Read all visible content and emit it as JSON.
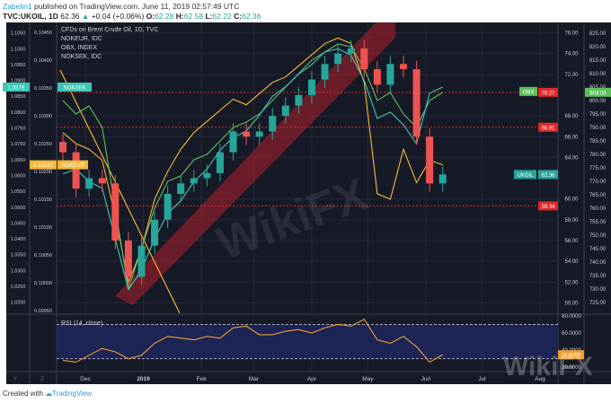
{
  "header": {
    "author": "Zabelin1",
    "published": "published on TradingView.com, June 11, 2019 02:57:49 UTC",
    "symbol": "TVC:UKOIL, 1D",
    "last": "62.36",
    "change": "+0.04 (+0.06%)",
    "o_label": "O:",
    "o": "62.28",
    "h_label": "H:",
    "h": "62.58",
    "l_label": "L:",
    "l": "62.22",
    "c_label": "C:",
    "c": "62.36"
  },
  "legend": [
    "CFDs on Brent Crude Oil, 1D, TVC",
    "NOKEUR, IDC",
    "OBX, INDEX",
    "NOKSEK, IDC"
  ],
  "footer": {
    "created_with": "Created with",
    "brand": "TradingView"
  },
  "watermark": "WikiFX",
  "colors": {
    "background": "#161a27",
    "grid": "#262b3a",
    "up": "#26a69a",
    "down": "#ef5350",
    "nokeur": "#f6b83a",
    "obx": "#5fbf5a",
    "noksek": "#3fc7b4",
    "rsi": "#f0a030",
    "rsi_band": "#1d2456",
    "level": "#e02828",
    "channel": "#b0202a",
    "trendline": "#f0b030"
  },
  "chart_data": [
    {
      "type": "candlestick",
      "title": "CFDs on Brent Crude Oil, 1D, TVC",
      "x": [
        "2018-11-19",
        "2018-11-26",
        "2018-12-03",
        "2018-12-10",
        "2018-12-17",
        "2018-12-24",
        "2018-12-31",
        "2019-01-07",
        "2019-01-14",
        "2019-01-21",
        "2019-01-28",
        "2019-02-04",
        "2019-02-11",
        "2019-02-18",
        "2019-02-25",
        "2019-03-04",
        "2019-03-11",
        "2019-03-18",
        "2019-03-25",
        "2019-04-01",
        "2019-04-08",
        "2019-04-15",
        "2019-04-22",
        "2019-04-29",
        "2019-05-06",
        "2019-05-13",
        "2019-05-20",
        "2019-05-27",
        "2019-06-03",
        "2019-06-10"
      ],
      "close": [
        64.5,
        61.0,
        62.0,
        61.5,
        56.0,
        52.5,
        55.5,
        58.0,
        60.5,
        61.5,
        62.0,
        62.5,
        64.5,
        66.5,
        66.0,
        66.5,
        68.0,
        69.0,
        70.0,
        71.5,
        73.0,
        74.0,
        74.5,
        72.5,
        71.0,
        73.0,
        72.5,
        66.0,
        61.5,
        62.36
      ],
      "ylim": [
        49,
        77
      ],
      "yticks": [
        "76.00",
        "74.00",
        "72.00",
        "68.00",
        "66.00",
        "64.00",
        "60.00",
        "58.00",
        "56.00",
        "54.00",
        "52.00",
        "50.00"
      ],
      "levels": [
        {
          "value": "70.27"
        },
        {
          "value": "66.91"
        },
        {
          "value": "59.34"
        }
      ],
      "last_label": "UKOIL",
      "last_value": "62.36"
    },
    {
      "type": "line",
      "name": "NOKEUR, IDC",
      "close": [
        0.1027,
        0.1025,
        0.1024,
        0.1022,
        0.1012,
        0.1,
        0.1006,
        0.1015,
        0.102,
        0.1024,
        0.1027,
        0.1029,
        0.1031,
        0.1033,
        0.1032,
        0.1034,
        0.1036,
        0.1037,
        0.1039,
        0.1041,
        0.1043,
        0.1044,
        0.1043,
        0.1036,
        0.1016,
        0.1015,
        0.1024,
        0.1018,
        0.1022,
        0.10212
      ],
      "ylim": [
        0.09945,
        0.10468
      ],
      "yticks": [
        "0.10450",
        "0.10400",
        "0.10350",
        "0.10300",
        "0.10250",
        "0.10200",
        "0.10150",
        "0.10100",
        "0.10050",
        "0.10000",
        "0.09950"
      ],
      "last_label": "NOKEUR",
      "last_value": "0.10212"
    },
    {
      "type": "line",
      "name": "OBX, INDEX",
      "close": [
        800,
        795,
        798,
        790,
        760,
        730,
        745,
        760,
        770,
        772,
        778,
        780,
        785,
        790,
        792,
        795,
        800,
        805,
        810,
        815,
        818,
        821,
        820,
        812,
        800,
        803,
        795,
        790,
        800,
        803.05
      ],
      "ylim": [
        721,
        829
      ],
      "yticks": [
        "825.00",
        "820.00",
        "815.00",
        "810.00",
        "805.00",
        "800.00",
        "795.00",
        "790.00",
        "785.00",
        "780.00",
        "775.00",
        "770.00",
        "765.00",
        "760.00",
        "755.00",
        "750.00",
        "745.00",
        "740.00",
        "735.00",
        "730.00",
        "725.00"
      ],
      "last_label": "OBX",
      "last_value": "803.05"
    },
    {
      "type": "line",
      "name": "NOKSEK, IDC",
      "close": [
        1.0605,
        1.062,
        1.058,
        1.056,
        1.04,
        1.024,
        1.03,
        1.04,
        1.048,
        1.052,
        1.058,
        1.062,
        1.068,
        1.072,
        1.074,
        1.079,
        1.085,
        1.088,
        1.092,
        1.095,
        1.099,
        1.1,
        1.098,
        1.09,
        1.078,
        1.08,
        1.076,
        1.07,
        1.086,
        1.0879
      ],
      "ylim": [
        1.0165,
        1.1083
      ],
      "yticks": [
        "1.1050",
        "1.1000",
        "1.0950",
        "1.0900",
        "1.0850",
        "1.0800",
        "1.0750",
        "1.0700",
        "1.0650",
        "1.0600",
        "1.0550",
        "1.0500",
        "1.0450",
        "1.0400",
        "1.0350",
        "1.0300",
        "1.0250",
        "1.0200"
      ],
      "last_label": "NOKSEK",
      "last_value": "1.0879"
    },
    {
      "type": "line",
      "name": "RSI (14, close)",
      "values": [
        28,
        26,
        34,
        42,
        38,
        30,
        34,
        48,
        56,
        54,
        52,
        56,
        54,
        66,
        68,
        58,
        58,
        62,
        64,
        60,
        66,
        70,
        68,
        76,
        52,
        48,
        56,
        44,
        26,
        34.6096
      ],
      "ylim": [
        16,
        82
      ],
      "yticks": [
        "80.0000",
        "60.0000",
        "40.0000",
        "20.0000"
      ],
      "bands": [
        70,
        30
      ],
      "last_value": "34.6096"
    }
  ],
  "time_axis": [
    {
      "label": "Dec",
      "date": "2018-12-01"
    },
    {
      "label": "2019",
      "date": "2019-01-01"
    },
    {
      "label": "Feb",
      "date": "2019-02-01"
    },
    {
      "label": "Mar",
      "date": "2019-03-01"
    },
    {
      "label": "Apr",
      "date": "2019-04-01"
    },
    {
      "label": "May",
      "date": "2019-05-01"
    },
    {
      "label": "Jun",
      "date": "2019-06-01"
    },
    {
      "label": "Jul",
      "date": "2019-07-01"
    },
    {
      "label": "Aug",
      "date": "2019-08-01"
    }
  ],
  "scale_buttons": [
    "Y",
    "Z"
  ]
}
